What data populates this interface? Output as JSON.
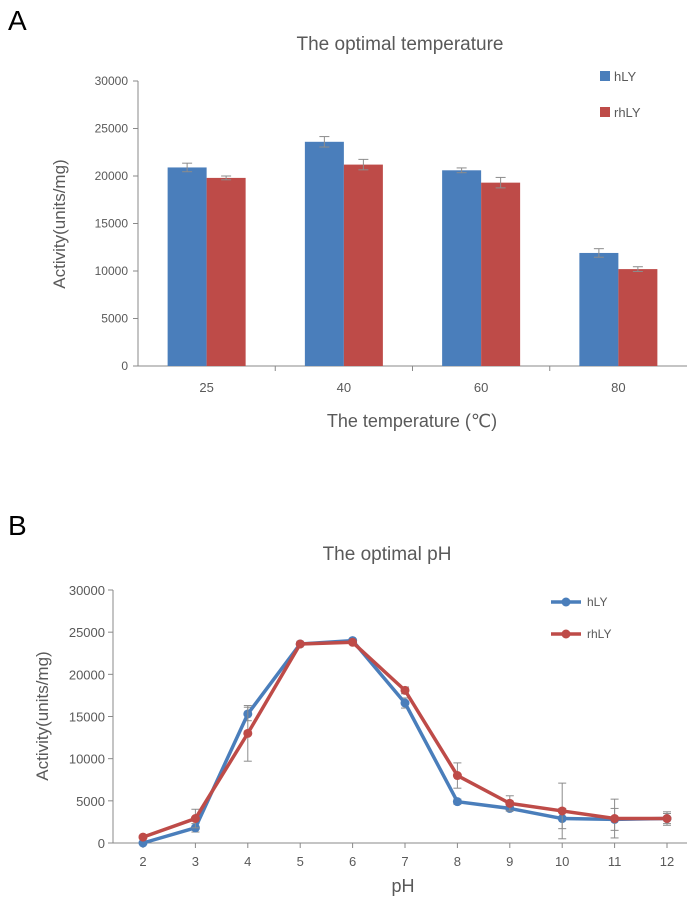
{
  "figure": {
    "panel_a_letter": "A",
    "panel_b_letter": "B"
  },
  "colors": {
    "hLY": "#4a7ebb",
    "rhLY": "#be4b48",
    "axis": "#898989",
    "text": "#595959",
    "errorbar": "#8c8c8c"
  },
  "chart_data": [
    {
      "panel": "A",
      "type": "bar",
      "title": "The optimal temperature",
      "xlabel": "The temperature (℃)",
      "ylabel": "Activity(units/mg)",
      "categories": [
        "25",
        "40",
        "60",
        "80"
      ],
      "ylim": [
        0,
        30000
      ],
      "yticks": [
        0,
        5000,
        10000,
        15000,
        20000,
        25000,
        30000
      ],
      "grid": false,
      "legend_position": "top-right",
      "series": [
        {
          "name": "hLY",
          "values": [
            20900,
            23600,
            20600,
            11900
          ],
          "errors": [
            450,
            550,
            250,
            450
          ]
        },
        {
          "name": "rhLY",
          "values": [
            19800,
            21200,
            19300,
            10200
          ],
          "errors": [
            200,
            550,
            550,
            250
          ]
        }
      ]
    },
    {
      "panel": "B",
      "type": "line",
      "title": "The optimal pH",
      "xlabel": "pH",
      "ylabel": "Activity(units/mg)",
      "x": [
        2,
        3,
        4,
        5,
        6,
        7,
        8,
        9,
        10,
        11,
        12
      ],
      "xlim": [
        2,
        12
      ],
      "ylim": [
        0,
        30000
      ],
      "yticks": [
        0,
        5000,
        10000,
        15000,
        20000,
        25000,
        30000
      ],
      "grid": false,
      "legend_position": "top-right",
      "series": [
        {
          "name": "hLY",
          "values": [
            0,
            1800,
            15300,
            23600,
            24000,
            16600,
            4900,
            4100,
            2900,
            2800,
            2900
          ],
          "errors": [
            0,
            500,
            800,
            200,
            200,
            600,
            300,
            300,
            1200,
            1300,
            600
          ]
        },
        {
          "name": "rhLY",
          "values": [
            700,
            2900,
            13000,
            23600,
            23800,
            18100,
            8000,
            4700,
            3800,
            2900,
            2900
          ],
          "errors": [
            0,
            1100,
            3300,
            200,
            200,
            400,
            1500,
            900,
            3300,
            2300,
            800
          ]
        }
      ]
    }
  ]
}
